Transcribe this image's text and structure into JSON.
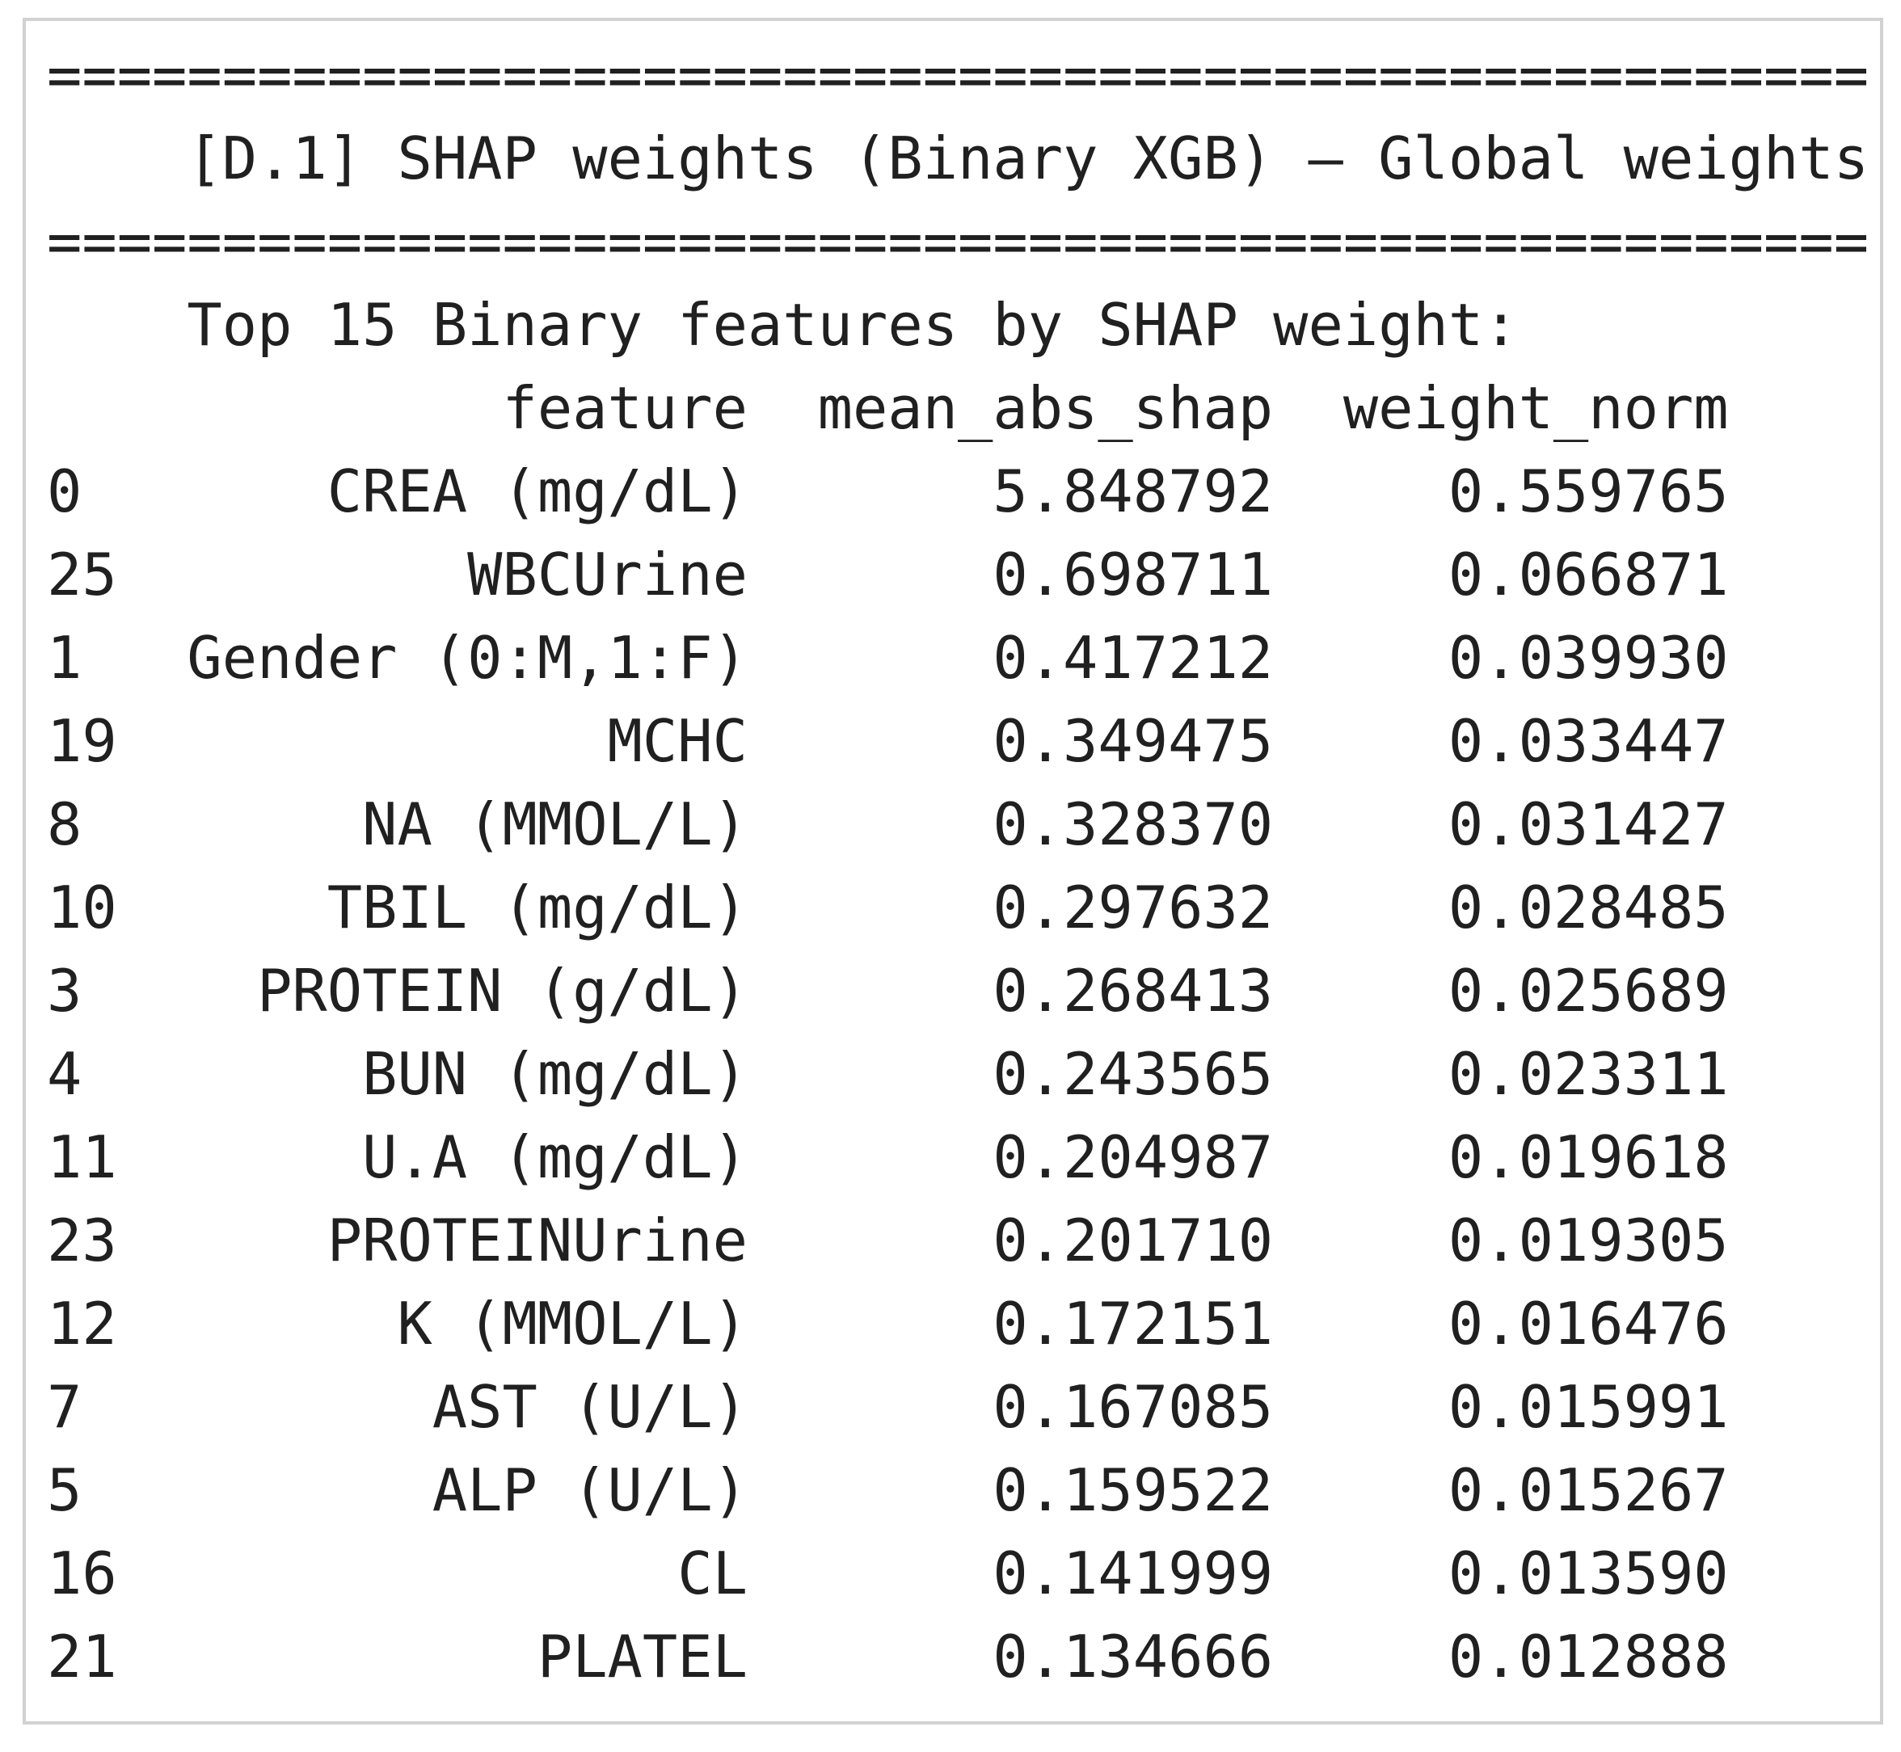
{
  "banner": {
    "separator": "====================================================",
    "title": "[D.1] SHAP weights (Binary XGB) — Global weights"
  },
  "section": {
    "heading": "Top 15 Binary features by SHAP weight:"
  },
  "table": {
    "columns": [
      "feature",
      "mean_abs_shap",
      "weight_norm"
    ],
    "rows": [
      {
        "index": "0",
        "feature": "CREA (mg/dL)",
        "mean_abs_shap": "5.848792",
        "weight_norm": "0.559765"
      },
      {
        "index": "25",
        "feature": "WBCUrine",
        "mean_abs_shap": "0.698711",
        "weight_norm": "0.066871"
      },
      {
        "index": "1",
        "feature": "Gender (0:M,1:F)",
        "mean_abs_shap": "0.417212",
        "weight_norm": "0.039930"
      },
      {
        "index": "19",
        "feature": "MCHC",
        "mean_abs_shap": "0.349475",
        "weight_norm": "0.033447"
      },
      {
        "index": "8",
        "feature": "NA (MMOL/L)",
        "mean_abs_shap": "0.328370",
        "weight_norm": "0.031427"
      },
      {
        "index": "10",
        "feature": "TBIL (mg/dL)",
        "mean_abs_shap": "0.297632",
        "weight_norm": "0.028485"
      },
      {
        "index": "3",
        "feature": "PROTEIN (g/dL)",
        "mean_abs_shap": "0.268413",
        "weight_norm": "0.025689"
      },
      {
        "index": "4",
        "feature": "BUN (mg/dL)",
        "mean_abs_shap": "0.243565",
        "weight_norm": "0.023311"
      },
      {
        "index": "11",
        "feature": "U.A (mg/dL)",
        "mean_abs_shap": "0.204987",
        "weight_norm": "0.019618"
      },
      {
        "index": "23",
        "feature": "PROTEINUrine",
        "mean_abs_shap": "0.201710",
        "weight_norm": "0.019305"
      },
      {
        "index": "12",
        "feature": "K (MMOL/L)",
        "mean_abs_shap": "0.172151",
        "weight_norm": "0.016476"
      },
      {
        "index": "7",
        "feature": "AST (U/L)",
        "mean_abs_shap": "0.167085",
        "weight_norm": "0.015991"
      },
      {
        "index": "5",
        "feature": "ALP (U/L)",
        "mean_abs_shap": "0.159522",
        "weight_norm": "0.015267"
      },
      {
        "index": "16",
        "feature": "CL",
        "mean_abs_shap": "0.141999",
        "weight_norm": "0.013590"
      },
      {
        "index": "21",
        "feature": "PLATEL",
        "mean_abs_shap": "0.134666",
        "weight_norm": "0.012888"
      }
    ]
  },
  "colors": {
    "text": "#202020",
    "border": "#d2d2d2",
    "background": "#ffffff"
  }
}
